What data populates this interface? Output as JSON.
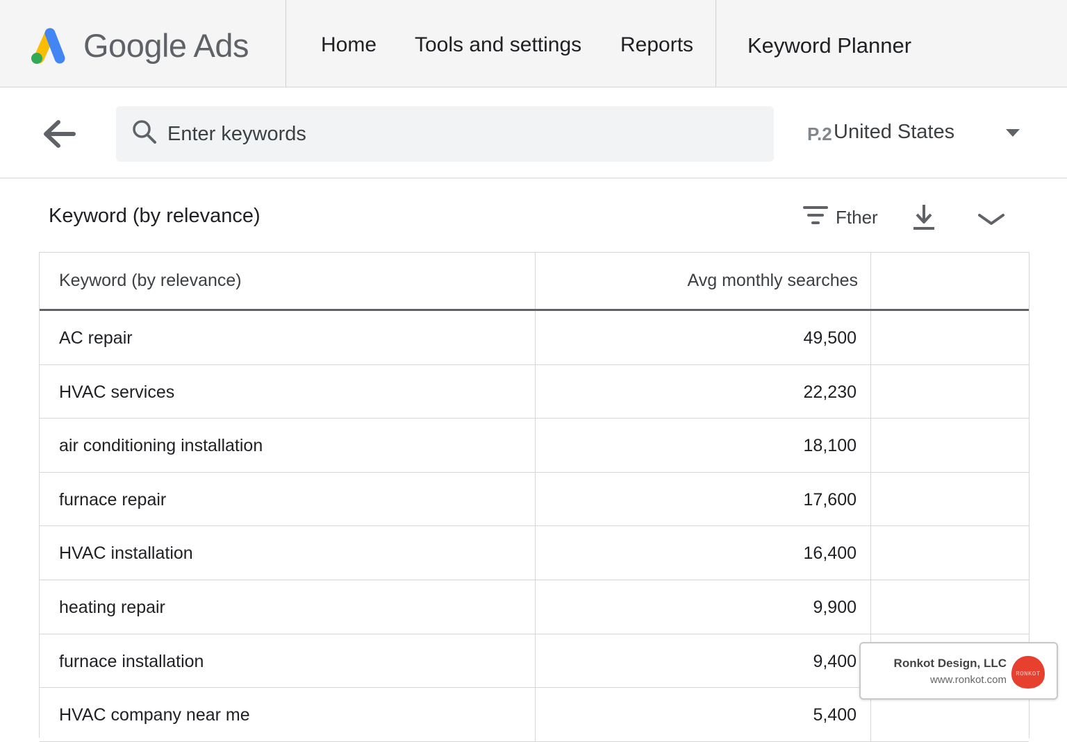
{
  "app": {
    "brand": "Google Ads",
    "brand_colors": {
      "blue": "#4285f4",
      "yellow": "#fbbc04",
      "green": "#34a853"
    }
  },
  "nav": {
    "items": [
      {
        "label": "Home"
      },
      {
        "label": "Tools and settings"
      },
      {
        "label": "Reports"
      }
    ],
    "page_title": "Keyword Planner"
  },
  "search": {
    "placeholder": "Enter keywords",
    "value": "",
    "icon": "search-icon"
  },
  "location": {
    "icon_glyph": "P.2",
    "label": "United States"
  },
  "section": {
    "title": "Keyword (by relevance)",
    "filter_label": "Fther",
    "icons": [
      "filter-icon",
      "download-icon",
      "chevron-down-icon"
    ]
  },
  "table": {
    "headers": {
      "keyword": "Keyword (by relevance)",
      "volume": "Avg  monthly searches"
    },
    "rows": [
      {
        "keyword": "AC repair",
        "volume": "49,500"
      },
      {
        "keyword": "HVAC services",
        "volume": "22,230"
      },
      {
        "keyword": "air conditioning installation",
        "volume": "18,100"
      },
      {
        "keyword": "furnace repair",
        "volume": "17,600"
      },
      {
        "keyword": "HVAC installation",
        "volume": "16,400"
      },
      {
        "keyword": "heating repair",
        "volume": "9,900"
      },
      {
        "keyword": "furnace installation",
        "volume": "9,400"
      },
      {
        "keyword": "HVAC company near me",
        "volume": "5,400"
      }
    ]
  },
  "watermark": {
    "company": "Ronkot Design, LLC",
    "url": "www.ronkot.com",
    "logo_text": "RONKOT",
    "logo_color": "#e8402f"
  }
}
